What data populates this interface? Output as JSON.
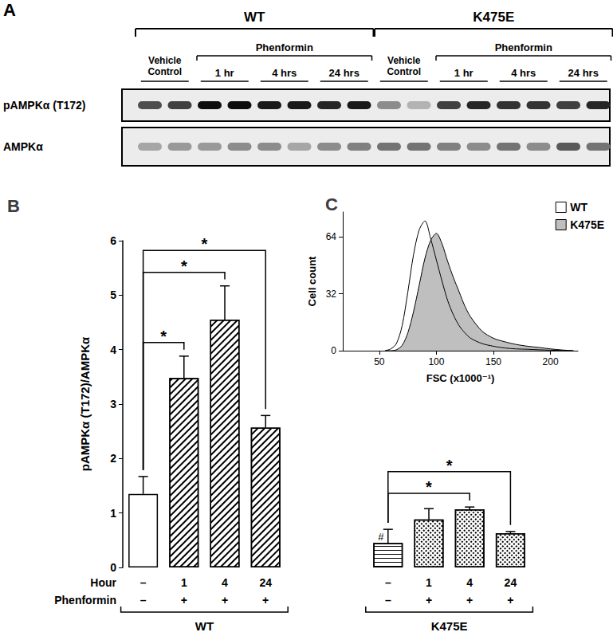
{
  "blot": {
    "panel": "A",
    "groups": [
      {
        "label": "WT",
        "control": "Vehicle Control",
        "treatment": "Phenformin",
        "times": [
          "1 hr",
          "4 hrs",
          "24 hrs"
        ]
      },
      {
        "label": "K475E",
        "control": "Vehicle Control",
        "treatment": "Phenformin",
        "times": [
          "1 hr",
          "4 hrs",
          "24 hrs"
        ]
      }
    ],
    "rows": [
      {
        "label": "pAMPKα (T172)",
        "intensity": [
          0.7,
          0.75,
          0.95,
          0.95,
          0.9,
          0.9,
          0.85,
          0.9,
          0.45,
          0.3,
          0.75,
          0.85,
          0.8,
          0.8,
          0.75,
          0.85
        ]
      },
      {
        "label": "AMPKα",
        "intensity": [
          0.35,
          0.4,
          0.4,
          0.45,
          0.45,
          0.35,
          0.45,
          0.5,
          0.55,
          0.55,
          0.5,
          0.45,
          0.55,
          0.45,
          0.65,
          0.55
        ]
      }
    ]
  },
  "chart_data": [
    {
      "panel": "B",
      "type": "bar",
      "y_label": "pAMPKα (T172)/AMPKα",
      "x_label": "Hour",
      "categories": [
        "–",
        "1",
        "4",
        "24",
        null,
        null,
        "–",
        "1",
        "4",
        "24"
      ],
      "second_row": {
        "label": "Phenformin",
        "categories": [
          "–",
          "+",
          "+",
          "+",
          null,
          null,
          "–",
          "+",
          "+",
          "+"
        ]
      },
      "values": [
        1.35,
        3.48,
        4.55,
        2.57,
        null,
        null,
        0.45,
        0.88,
        1.07,
        0.63
      ],
      "errors": [
        0.32,
        0.4,
        0.62,
        0.22,
        null,
        null,
        0.25,
        0.2,
        0.04,
        0.03
      ],
      "color": "#ffffff",
      "ylim": [
        0,
        6
      ],
      "yticks": [
        0,
        1,
        2,
        3,
        4,
        5,
        6
      ],
      "groups": [
        {
          "label": "WT",
          "from": 0,
          "to": 3
        },
        {
          "label": "K475E",
          "from": 6,
          "to": 9
        }
      ],
      "significance": [
        {
          "from": 0,
          "to": 1,
          "label": "*"
        },
        {
          "from": 0,
          "to": 2,
          "label": "*"
        },
        {
          "from": 0,
          "to": 3,
          "label": "*"
        },
        {
          "from": 6,
          "to": 8,
          "label": "*"
        },
        {
          "from": 6,
          "to": 9,
          "label": "*"
        }
      ],
      "annotations": [
        {
          "index": 6,
          "label": "#"
        }
      ]
    },
    {
      "panel": "C",
      "type": "line",
      "x_label": "FSC (x1000⁻¹)",
      "y_label": "Cell count",
      "x": [
        55,
        60,
        65,
        70,
        75,
        80,
        85,
        90,
        95,
        100,
        105,
        110,
        115,
        120,
        125,
        130,
        140,
        150,
        160,
        170,
        180,
        190,
        200,
        210,
        220
      ],
      "series": [
        {
          "name": "WT",
          "color": "#ffffff",
          "values": [
            0,
            1,
            4,
            14,
            33,
            54,
            68,
            73,
            63,
            51,
            39,
            28,
            20,
            14,
            10,
            7,
            4,
            2.5,
            1.5,
            1,
            0.8,
            0.5,
            0.3,
            0.1,
            0
          ]
        },
        {
          "name": "K475E",
          "color": "#bfbfbf",
          "values": [
            0,
            0,
            0.5,
            3,
            10,
            22,
            37,
            52,
            62,
            66,
            60,
            50,
            41,
            33,
            25,
            19,
            11,
            7,
            5,
            3.5,
            2.5,
            1.8,
            1,
            0.4,
            0
          ]
        }
      ],
      "xlim": [
        18,
        224
      ],
      "xticks": [
        50,
        100,
        150,
        200
      ],
      "ylim": [
        0,
        78
      ],
      "yticks": [
        0,
        32,
        64
      ],
      "legend": "upper right"
    }
  ]
}
